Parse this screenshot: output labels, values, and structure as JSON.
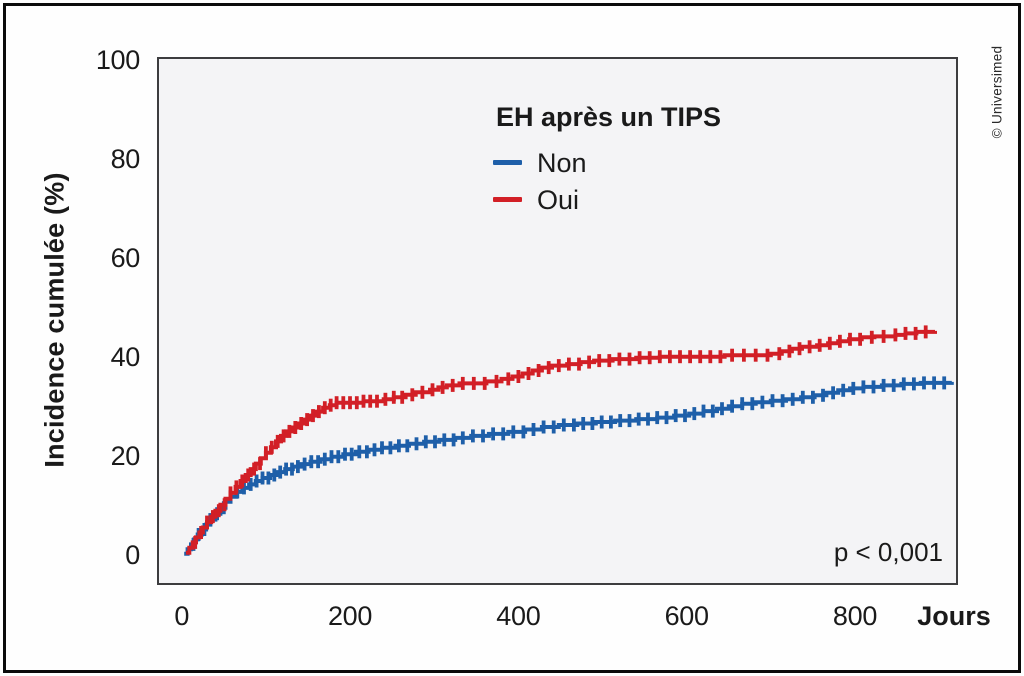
{
  "figure": {
    "credit": "© Universimed"
  },
  "chart_data": {
    "type": "line",
    "subtype": "step-cumulative-incidence",
    "title": "",
    "xlabel": "Jours",
    "ylabel": "Incidence cumulée (%)",
    "xlim": [
      -27,
      920
    ],
    "ylim": [
      -5.6,
      100.2
    ],
    "xticks": [
      0,
      200,
      400,
      600,
      800
    ],
    "yticks": [
      0,
      20,
      40,
      60,
      80,
      100
    ],
    "grid": false,
    "plot_background": "#f4f4f6",
    "annotation": "p < 0,001",
    "legend": {
      "title": "EH après un TIPS",
      "position": "inside-top-center",
      "entries": [
        {
          "label": "Non",
          "color": "#1e5fa9"
        },
        {
          "label": "Oui",
          "color": "#d21f26"
        }
      ]
    },
    "series": [
      {
        "name": "Non",
        "color": "#1e5fa9",
        "points": [
          [
            3,
            0.3
          ],
          [
            7,
            1.2
          ],
          [
            11,
            2.2
          ],
          [
            15,
            3.2
          ],
          [
            19,
            4.2
          ],
          [
            24,
            5.2
          ],
          [
            29,
            6.2
          ],
          [
            34,
            7.2
          ],
          [
            40,
            8.4
          ],
          [
            46,
            9.6
          ],
          [
            52,
            10.8
          ],
          [
            58,
            11.8
          ],
          [
            65,
            12.8
          ],
          [
            72,
            13.6
          ],
          [
            80,
            14.3
          ],
          [
            88,
            15.0
          ],
          [
            96,
            15.6
          ],
          [
            105,
            16.2
          ],
          [
            114,
            16.8
          ],
          [
            123,
            17.4
          ],
          [
            132,
            17.9
          ],
          [
            142,
            18.4
          ],
          [
            153,
            18.9
          ],
          [
            165,
            19.4
          ],
          [
            178,
            19.9
          ],
          [
            192,
            20.4
          ],
          [
            207,
            20.9
          ],
          [
            222,
            21.3
          ],
          [
            238,
            21.7
          ],
          [
            254,
            22.1
          ],
          [
            270,
            22.5
          ],
          [
            288,
            22.9
          ],
          [
            306,
            23.3
          ],
          [
            325,
            23.7
          ],
          [
            344,
            24.1
          ],
          [
            365,
            24.5
          ],
          [
            388,
            24.9
          ],
          [
            408,
            25.4
          ],
          [
            428,
            25.9
          ],
          [
            448,
            26.3
          ],
          [
            470,
            26.6
          ],
          [
            492,
            26.9
          ],
          [
            515,
            27.2
          ],
          [
            540,
            27.5
          ],
          [
            565,
            27.8
          ],
          [
            585,
            28.2
          ],
          [
            603,
            28.6
          ],
          [
            620,
            29.1
          ],
          [
            636,
            29.6
          ],
          [
            650,
            30.1
          ],
          [
            666,
            30.6
          ],
          [
            682,
            30.9
          ],
          [
            700,
            31.2
          ],
          [
            718,
            31.5
          ],
          [
            736,
            31.9
          ],
          [
            752,
            32.3
          ],
          [
            766,
            32.8
          ],
          [
            780,
            33.3
          ],
          [
            794,
            33.7
          ],
          [
            810,
            34.0
          ],
          [
            832,
            34.3
          ],
          [
            855,
            34.6
          ],
          [
            878,
            34.8
          ],
          [
            915,
            35.0
          ]
        ],
        "censor_days": [
          14,
          20,
          27,
          34,
          42,
          50,
          58,
          66,
          74,
          82,
          89,
          96,
          103,
          110,
          117,
          124,
          131,
          138,
          146,
          154,
          162,
          170,
          178,
          186,
          194,
          202,
          211,
          220,
          229,
          238,
          248,
          258,
          268,
          279,
          290,
          301,
          312,
          323,
          334,
          346,
          358,
          370,
          382,
          394,
          406,
          418,
          430,
          442,
          454,
          466,
          477,
          488,
          499,
          510,
          521,
          532,
          543,
          554,
          565,
          576,
          587,
          598,
          609,
          620,
          631,
          642,
          654,
          666,
          678,
          690,
          702,
          714,
          726,
          738,
          750,
          762,
          774,
          786,
          798,
          810,
          822,
          834,
          846,
          858,
          870,
          882,
          894,
          906
        ]
      },
      {
        "name": "Oui",
        "color": "#d21f26",
        "points": [
          [
            5,
            0.5
          ],
          [
            9,
            1.5
          ],
          [
            13,
            2.6
          ],
          [
            17,
            3.6
          ],
          [
            21,
            4.6
          ],
          [
            25,
            5.6
          ],
          [
            30,
            6.7
          ],
          [
            35,
            7.8
          ],
          [
            40,
            9.0
          ],
          [
            46,
            10.2
          ],
          [
            52,
            11.4
          ],
          [
            58,
            12.6
          ],
          [
            64,
            13.8
          ],
          [
            70,
            15.0
          ],
          [
            76,
            16.2
          ],
          [
            82,
            17.4
          ],
          [
            88,
            18.5
          ],
          [
            94,
            19.6
          ],
          [
            100,
            20.7
          ],
          [
            106,
            21.8
          ],
          [
            112,
            23.0
          ],
          [
            118,
            24.1
          ],
          [
            124,
            25.0
          ],
          [
            131,
            25.8
          ],
          [
            138,
            26.6
          ],
          [
            145,
            27.4
          ],
          [
            152,
            28.2
          ],
          [
            160,
            29.0
          ],
          [
            168,
            29.8
          ],
          [
            176,
            30.3
          ],
          [
            184,
            30.8
          ],
          [
            216,
            31.1
          ],
          [
            240,
            31.5
          ],
          [
            252,
            31.9
          ],
          [
            266,
            32.4
          ],
          [
            278,
            32.9
          ],
          [
            295,
            33.4
          ],
          [
            305,
            33.9
          ],
          [
            315,
            34.3
          ],
          [
            330,
            34.7
          ],
          [
            362,
            35.1
          ],
          [
            380,
            35.6
          ],
          [
            393,
            36.1
          ],
          [
            405,
            36.7
          ],
          [
            417,
            37.3
          ],
          [
            428,
            37.9
          ],
          [
            440,
            38.3
          ],
          [
            458,
            38.6
          ],
          [
            474,
            39.0
          ],
          [
            490,
            39.3
          ],
          [
            512,
            39.6
          ],
          [
            540,
            39.9
          ],
          [
            568,
            40.1
          ],
          [
            645,
            40.4
          ],
          [
            700,
            40.7
          ],
          [
            713,
            41.2
          ],
          [
            725,
            41.7
          ],
          [
            737,
            42.1
          ],
          [
            755,
            42.4
          ],
          [
            768,
            42.8
          ],
          [
            780,
            43.2
          ],
          [
            793,
            43.6
          ],
          [
            808,
            44.0
          ],
          [
            823,
            44.2
          ],
          [
            848,
            44.5
          ],
          [
            860,
            44.8
          ],
          [
            873,
            45.1
          ],
          [
            895,
            45.3
          ]
        ],
        "censor_days": [
          16,
          23,
          30,
          37,
          44,
          51,
          58,
          65,
          72,
          79,
          86,
          93,
          100,
          107,
          114,
          121,
          128,
          135,
          142,
          149,
          156,
          163,
          170,
          177,
          184,
          192,
          200,
          208,
          216,
          224,
          232,
          242,
          252,
          262,
          274,
          286,
          298,
          310,
          322,
          334,
          347,
          360,
          374,
          388,
          400,
          412,
          424,
          436,
          448,
          460,
          472,
          484,
          496,
          508,
          520,
          532,
          544,
          556,
          568,
          580,
          592,
          604,
          616,
          628,
          640,
          654,
          668,
          682,
          696,
          710,
          722,
          734,
          746,
          758,
          770,
          782,
          794,
          806,
          820,
          834,
          848,
          860,
          872,
          884
        ]
      }
    ]
  }
}
